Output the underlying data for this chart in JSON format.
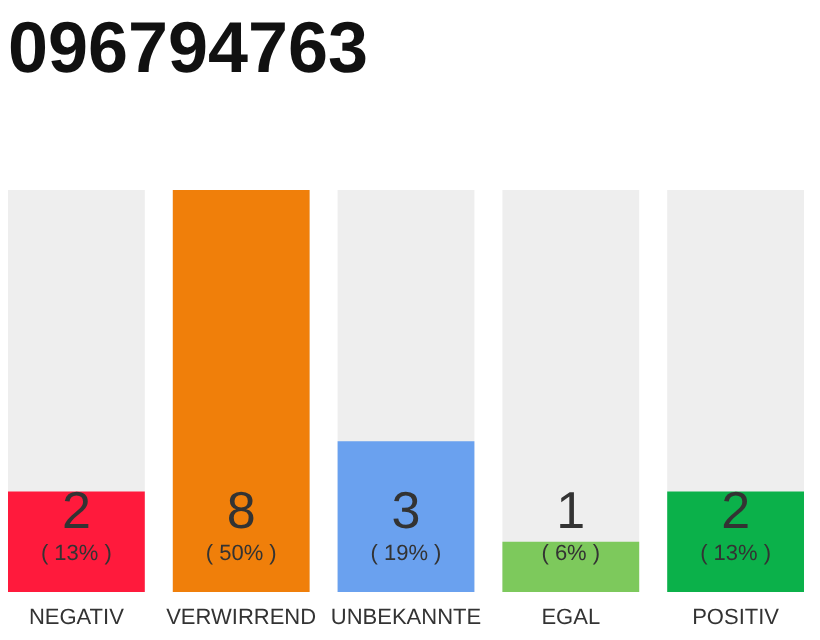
{
  "chart_data": {
    "type": "bar",
    "title": "096794763",
    "categories": [
      "NEGATIV",
      "VERWIRREND",
      "UNBEKANNTE",
      "EGAL",
      "POSITIV"
    ],
    "values": [
      2,
      8,
      3,
      1,
      2
    ],
    "colors": [
      "#ff1a3c",
      "#f07f0a",
      "#6aa1ef",
      "#7dc95c",
      "#0bb14a"
    ],
    "ylim": [
      0,
      8
    ],
    "data_labels": true,
    "tick_labels": "x",
    "annotations": [
      "( 13% )",
      "( 50% )",
      "( 19% )",
      "( 6% )",
      "( 13% )"
    ]
  }
}
